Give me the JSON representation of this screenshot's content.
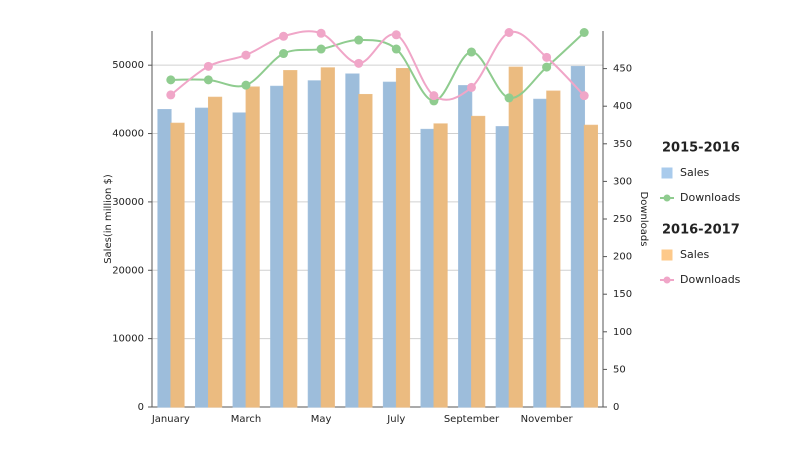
{
  "chart_data": {
    "type": "bar",
    "categories": [
      "January",
      null,
      "March",
      null,
      "May",
      null,
      "July",
      null,
      "September",
      null,
      "November",
      null
    ],
    "y_label": "Sales(in million $)",
    "y2_label": "Downloads",
    "ylim": [
      0,
      55000
    ],
    "yticks": [
      0,
      10000,
      20000,
      30000,
      40000,
      50000
    ],
    "y2lim": [
      0,
      500
    ],
    "y2ticks": [
      0,
      50,
      100,
      150,
      200,
      250,
      300,
      350,
      400,
      450
    ],
    "grid": true,
    "groups": [
      {
        "name": "2015-2016",
        "series": [
          {
            "name": "Sales",
            "type": "bar",
            "color": "#a9cbec",
            "values": [
              43500,
              43700,
              43000,
              46900,
              47700,
              48700,
              47500,
              40600,
              47000,
              41000,
              45000,
              49800
            ]
          },
          {
            "name": "Downloads",
            "type": "line",
            "axis": "y2",
            "color": "#8fcc8f",
            "values": [
              435,
              435,
              428,
              470,
              476,
              488,
              476,
              407,
              472,
              411,
              452,
              498
            ]
          }
        ]
      },
      {
        "name": "2016-2017",
        "series": [
          {
            "name": "Sales",
            "type": "bar",
            "color": "#fdc98a",
            "values": [
              41500,
              45300,
              46800,
              49200,
              49600,
              45700,
              49500,
              41400,
              42500,
              49700,
              46200,
              41200
            ]
          },
          {
            "name": "Downloads",
            "type": "line",
            "axis": "y2",
            "color": "#f0a6c8",
            "values": [
              415,
              453,
              468,
              493,
              497,
              457,
              495,
              414,
              425,
              498,
              465,
              414
            ]
          }
        ]
      }
    ]
  }
}
